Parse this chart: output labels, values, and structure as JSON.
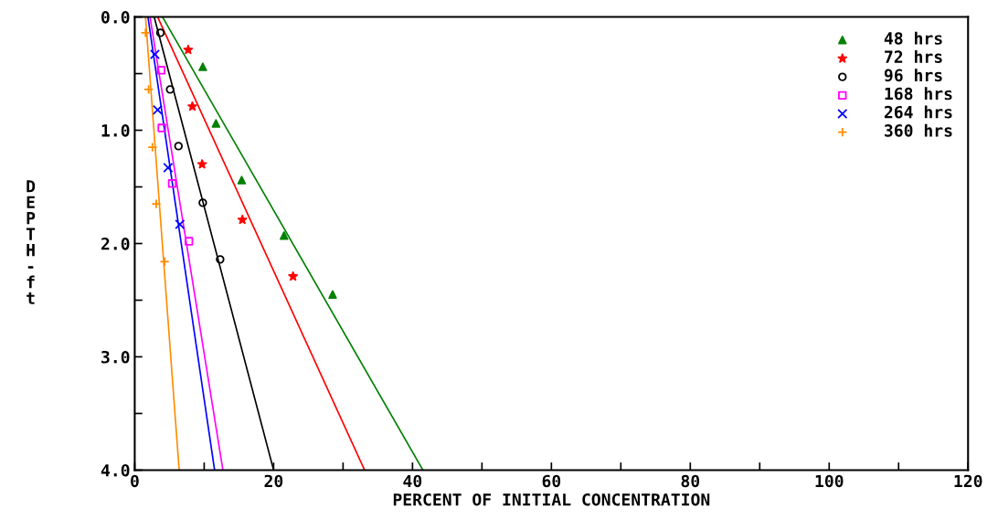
{
  "chart_data": {
    "type": "scatter",
    "xlabel": "PERCENT OF INITIAL CONCENTRATION",
    "ylabel": "DEPTH-ft",
    "xlim": [
      0,
      120
    ],
    "xticks": [
      0,
      {
        "value": 10,
        "label": null
      },
      20,
      {
        "value": 30,
        "label": null
      },
      40,
      {
        "value": 50,
        "label": null
      },
      60,
      {
        "value": 70,
        "label": null
      },
      80,
      {
        "value": 90,
        "label": null
      },
      100,
      {
        "value": 110,
        "label": null
      },
      120
    ],
    "ylim": [
      4,
      0
    ],
    "yticks": [
      {
        "value": 0,
        "label": "0.0"
      },
      {
        "value": 0.5,
        "label": null
      },
      {
        "value": 1,
        "label": "1.0"
      },
      {
        "value": 1.5,
        "label": null
      },
      {
        "value": 2,
        "label": "2.0"
      },
      {
        "value": 2.5,
        "label": null
      },
      {
        "value": 3,
        "label": "3.0"
      },
      {
        "value": 3.5,
        "label": null
      },
      {
        "value": 4,
        "label": "4.0"
      }
    ],
    "grid": false,
    "legend": "top right",
    "series": [
      {
        "name": "48 hrs",
        "marker": "triangle",
        "color": "#008000",
        "x": [
          9.8,
          11.7,
          15.4,
          21.5,
          28.5
        ],
        "values": [
          0.44,
          0.94,
          1.44,
          1.93,
          2.45
        ]
      },
      {
        "name": "72 hrs",
        "marker": "star",
        "color": "#ff0000",
        "x": [
          7.7,
          8.3,
          9.7,
          15.5,
          22.8
        ],
        "values": [
          0.29,
          0.79,
          1.3,
          1.79,
          2.29
        ]
      },
      {
        "name": "96 hrs",
        "marker": "circle",
        "color": "#000000",
        "x": [
          3.7,
          5.1,
          6.3,
          9.8,
          12.3
        ],
        "values": [
          0.14,
          0.64,
          1.14,
          1.64,
          2.14
        ]
      },
      {
        "name": "168 hrs",
        "marker": "square",
        "color": "#ff00ff",
        "x": [
          3.8,
          3.9,
          5.4,
          7.8
        ],
        "values": [
          0.47,
          0.98,
          1.47,
          1.98
        ]
      },
      {
        "name": "264 hrs",
        "marker": "cross",
        "color": "#0000ff",
        "x": [
          2.9,
          3.3,
          4.8,
          6.5
        ],
        "values": [
          0.33,
          0.82,
          1.33,
          1.83
        ]
      },
      {
        "name": "360 hrs",
        "marker": "plus",
        "color": "#ff8c00",
        "x": [
          1.55,
          2.0,
          2.55,
          3.1,
          4.3
        ],
        "values": [
          0.14,
          0.64,
          1.15,
          1.65,
          2.16
        ]
      },
      {
        "type": "line",
        "color": "#008000",
        "x": [
          4.0,
          41.5
        ],
        "values": [
          0,
          4
        ]
      },
      {
        "type": "line",
        "color": "#ff0000",
        "x": [
          3.3,
          33.1
        ],
        "values": [
          0,
          4
        ]
      },
      {
        "type": "line",
        "color": "#000000",
        "x": [
          2.8,
          20.0
        ],
        "values": [
          0,
          4
        ]
      },
      {
        "type": "line",
        "color": "#ff00ff",
        "x": [
          2.2,
          12.7
        ],
        "values": [
          0,
          4
        ]
      },
      {
        "type": "line",
        "color": "#0000ff",
        "x": [
          1.9,
          11.5
        ],
        "values": [
          0,
          4
        ]
      },
      {
        "type": "line",
        "color": "#ff8c00",
        "x": [
          1.55,
          6.4
        ],
        "values": [
          0,
          4
        ]
      }
    ]
  }
}
